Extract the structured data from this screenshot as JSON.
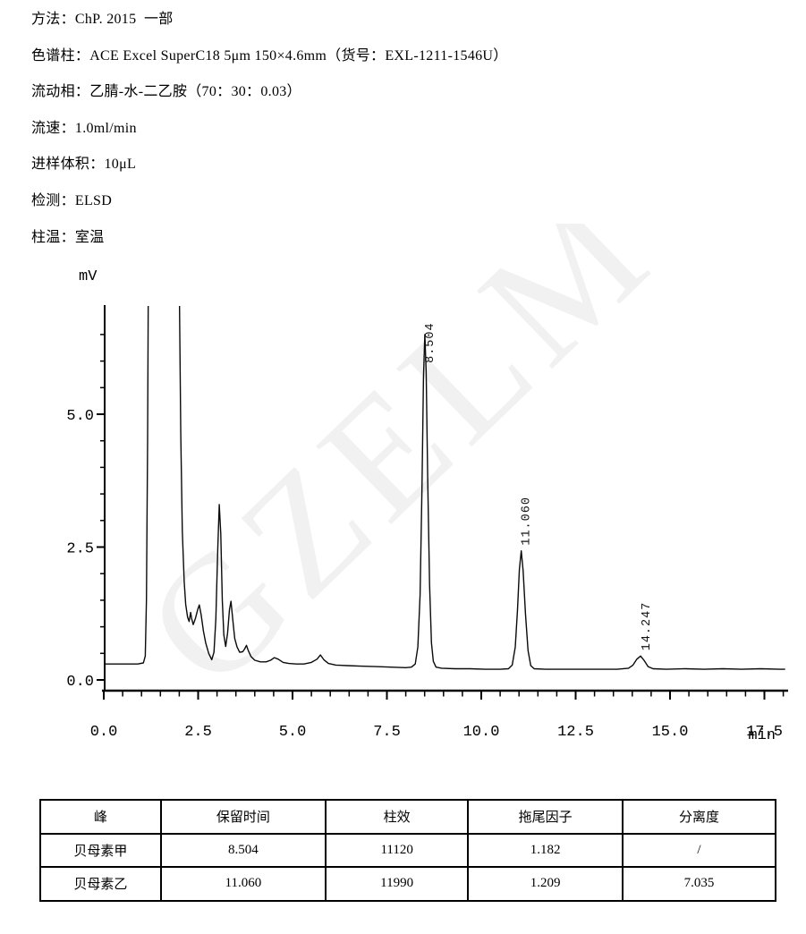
{
  "params": {
    "lines": [
      "方法：ChP. 2015  一部",
      "色谱柱：ACE Excel SuperC18 5μm 150×4.6mm（货号：EXL-1211-1546U）",
      "流动相：乙腈-水-二乙胺（70：30：0.03）",
      "流速：1.0ml/min",
      "进样体积：10μL",
      "检测：ELSD",
      "柱温：室温"
    ]
  },
  "chart_data": {
    "type": "line",
    "title": "",
    "xlabel": "min",
    "ylabel": "mV",
    "xlim": [
      0,
      18.1
    ],
    "ylim": [
      0,
      7.0
    ],
    "grid": false,
    "x_ticks_major": [
      0,
      2.5,
      5,
      7.5,
      10,
      12.5,
      15,
      17.5
    ],
    "x_tick_labels": [
      "0.0",
      "2.5",
      "5.0",
      "7.5",
      "10.0",
      "12.5",
      "15.0",
      "17.5"
    ],
    "y_ticks_major": [
      0,
      2.5,
      5
    ],
    "y_tick_labels": [
      "0.0",
      "2.5",
      "5.0"
    ],
    "minor_tick_step": 0.5,
    "watermark": "GZELM",
    "watermark_color": "#f1f1f2",
    "line_color": "#0a0a0a",
    "peaks": [
      {
        "name": "贝母素甲",
        "rt": 8.504,
        "height_mV": 6.5,
        "label": "8.504"
      },
      {
        "name": "贝母素乙",
        "rt": 11.06,
        "height_mV": 2.43,
        "label": "11.060"
      },
      {
        "name": "",
        "rt": 14.247,
        "height_mV": 0.45,
        "label": "14.247"
      }
    ],
    "trace": [
      [
        0,
        0.3
      ],
      [
        0.45,
        0.3
      ],
      [
        0.9,
        0.3
      ],
      [
        1.05,
        0.32
      ],
      [
        1.1,
        0.45
      ],
      [
        1.13,
        1.5
      ],
      [
        1.16,
        4.5
      ],
      [
        1.18,
        7.5
      ],
      [
        1.45,
        7.5
      ],
      [
        1.75,
        7.5
      ],
      [
        2.0,
        7.5
      ],
      [
        2.04,
        4.6
      ],
      [
        2.08,
        2.8
      ],
      [
        2.13,
        1.85
      ],
      [
        2.17,
        1.42
      ],
      [
        2.22,
        1.18
      ],
      [
        2.26,
        1.1
      ],
      [
        2.3,
        1.27
      ],
      [
        2.33,
        1.15
      ],
      [
        2.37,
        1.04
      ],
      [
        2.43,
        1.16
      ],
      [
        2.49,
        1.33
      ],
      [
        2.53,
        1.41
      ],
      [
        2.58,
        1.22
      ],
      [
        2.64,
        0.92
      ],
      [
        2.7,
        0.7
      ],
      [
        2.78,
        0.5
      ],
      [
        2.86,
        0.38
      ],
      [
        2.92,
        0.52
      ],
      [
        2.97,
        1.15
      ],
      [
        3.02,
        2.45
      ],
      [
        3.06,
        3.3
      ],
      [
        3.1,
        2.75
      ],
      [
        3.14,
        1.5
      ],
      [
        3.18,
        0.85
      ],
      [
        3.23,
        0.63
      ],
      [
        3.28,
        0.88
      ],
      [
        3.33,
        1.32
      ],
      [
        3.37,
        1.48
      ],
      [
        3.42,
        1.12
      ],
      [
        3.47,
        0.78
      ],
      [
        3.53,
        0.62
      ],
      [
        3.6,
        0.52
      ],
      [
        3.68,
        0.53
      ],
      [
        3.73,
        0.58
      ],
      [
        3.78,
        0.65
      ],
      [
        3.83,
        0.55
      ],
      [
        3.9,
        0.44
      ],
      [
        4.0,
        0.37
      ],
      [
        4.15,
        0.34
      ],
      [
        4.3,
        0.34
      ],
      [
        4.42,
        0.37
      ],
      [
        4.52,
        0.42
      ],
      [
        4.62,
        0.39
      ],
      [
        4.75,
        0.33
      ],
      [
        4.9,
        0.31
      ],
      [
        5.1,
        0.3
      ],
      [
        5.3,
        0.3
      ],
      [
        5.5,
        0.33
      ],
      [
        5.65,
        0.39
      ],
      [
        5.74,
        0.47
      ],
      [
        5.83,
        0.38
      ],
      [
        5.95,
        0.31
      ],
      [
        6.15,
        0.28
      ],
      [
        6.45,
        0.27
      ],
      [
        6.8,
        0.26
      ],
      [
        7.2,
        0.25
      ],
      [
        7.6,
        0.24
      ],
      [
        8.0,
        0.23
      ],
      [
        8.15,
        0.24
      ],
      [
        8.25,
        0.3
      ],
      [
        8.32,
        0.62
      ],
      [
        8.38,
        1.6
      ],
      [
        8.43,
        3.6
      ],
      [
        8.47,
        5.7
      ],
      [
        8.504,
        6.5
      ],
      [
        8.54,
        5.8
      ],
      [
        8.58,
        3.8
      ],
      [
        8.63,
        1.8
      ],
      [
        8.68,
        0.7
      ],
      [
        8.73,
        0.35
      ],
      [
        8.8,
        0.24
      ],
      [
        8.95,
        0.22
      ],
      [
        9.3,
        0.21
      ],
      [
        9.7,
        0.21
      ],
      [
        10.1,
        0.2
      ],
      [
        10.5,
        0.2
      ],
      [
        10.72,
        0.21
      ],
      [
        10.82,
        0.28
      ],
      [
        10.9,
        0.62
      ],
      [
        10.96,
        1.32
      ],
      [
        11.01,
        2.08
      ],
      [
        11.06,
        2.43
      ],
      [
        11.11,
        2.05
      ],
      [
        11.17,
        1.25
      ],
      [
        11.24,
        0.55
      ],
      [
        11.31,
        0.27
      ],
      [
        11.4,
        0.21
      ],
      [
        11.7,
        0.2
      ],
      [
        12.1,
        0.2
      ],
      [
        12.6,
        0.2
      ],
      [
        13.1,
        0.2
      ],
      [
        13.6,
        0.2
      ],
      [
        13.9,
        0.22
      ],
      [
        14.02,
        0.28
      ],
      [
        14.12,
        0.39
      ],
      [
        14.22,
        0.45
      ],
      [
        14.32,
        0.36
      ],
      [
        14.42,
        0.25
      ],
      [
        14.55,
        0.21
      ],
      [
        14.9,
        0.2
      ],
      [
        15.4,
        0.21
      ],
      [
        15.9,
        0.2
      ],
      [
        16.4,
        0.21
      ],
      [
        16.9,
        0.2
      ],
      [
        17.4,
        0.21
      ],
      [
        17.9,
        0.2
      ],
      [
        18.05,
        0.2
      ]
    ]
  },
  "table": {
    "headers": [
      "峰",
      "保留时间",
      "柱效",
      "拖尾因子",
      "分离度"
    ],
    "rows": [
      [
        "贝母素甲",
        "8.504",
        "11120",
        "1.182",
        "/"
      ],
      [
        "贝母素乙",
        "11.060",
        "11990",
        "1.209",
        "7.035"
      ]
    ]
  }
}
